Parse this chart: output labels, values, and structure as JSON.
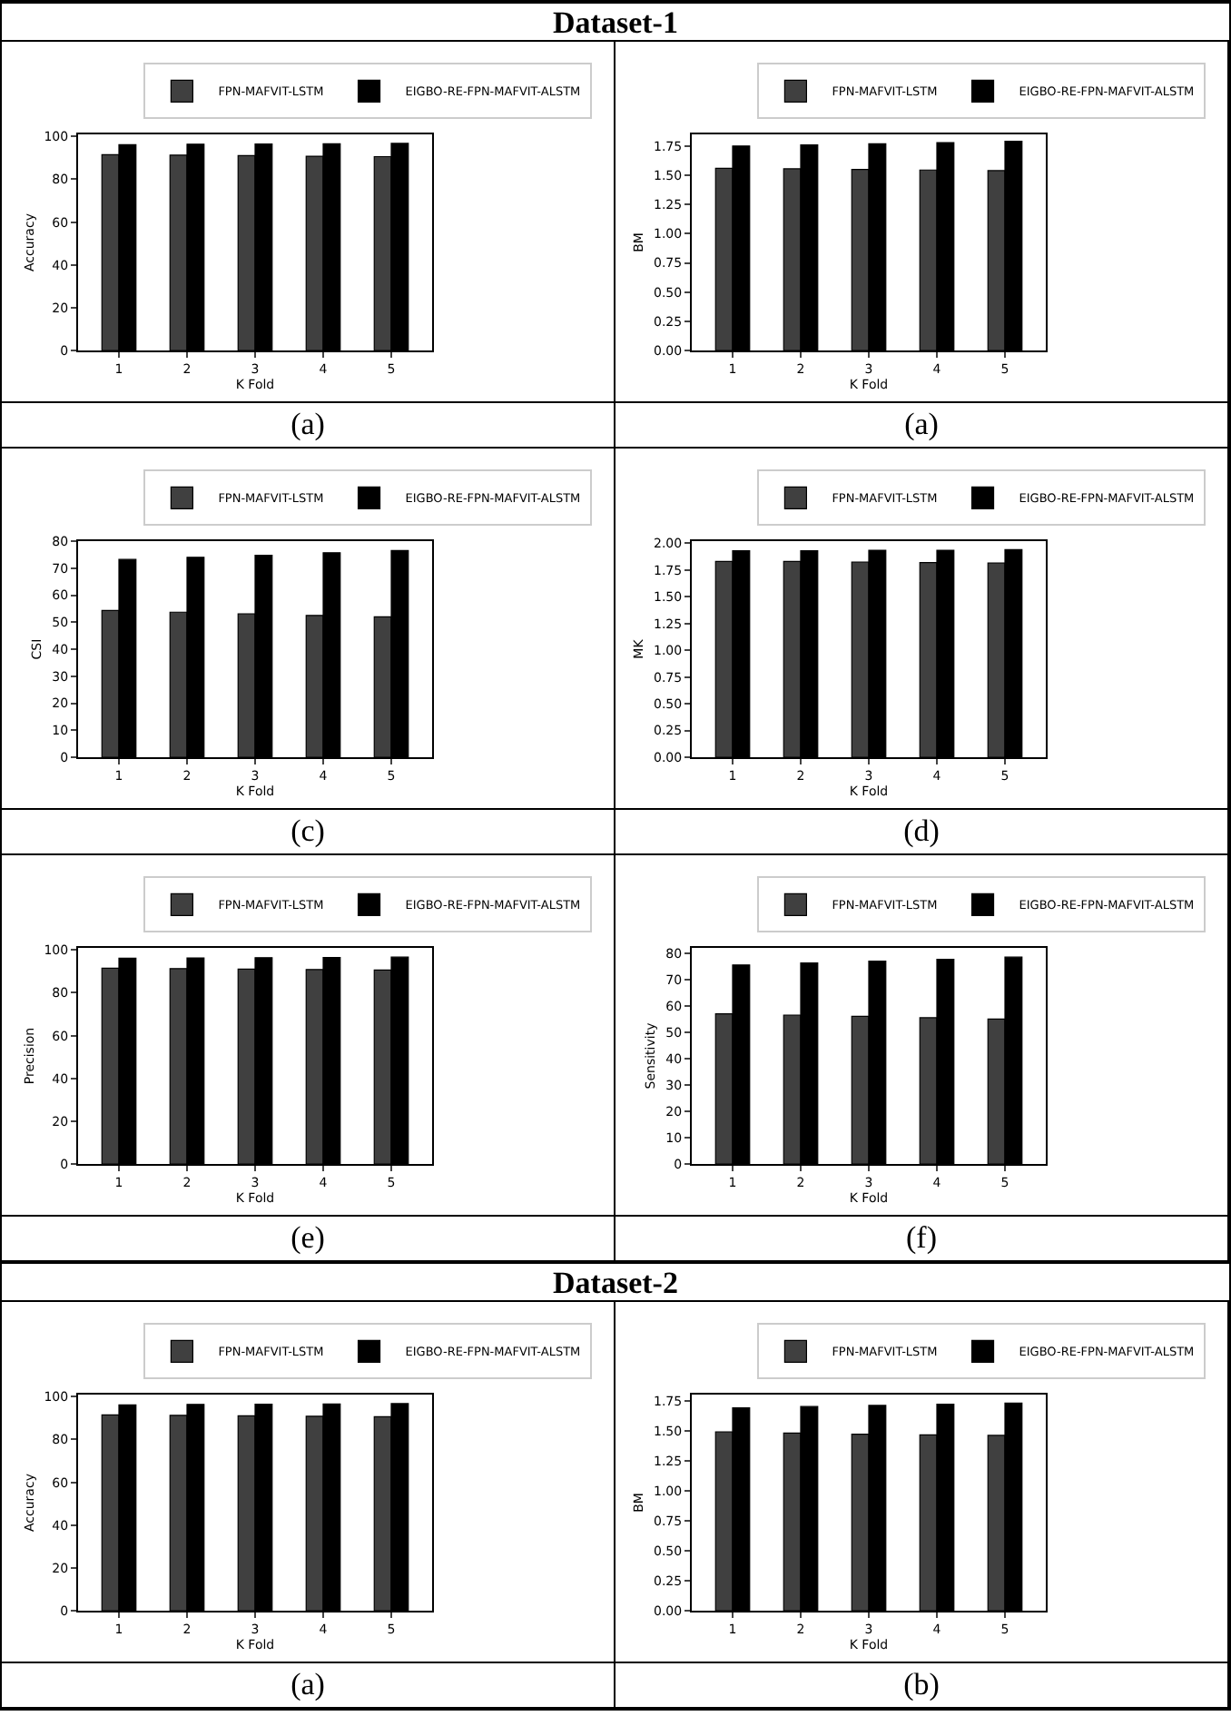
{
  "chart_data": [
    {
      "type": "other",
      "title": "Dataset-1"
    },
    {
      "type": "bar",
      "xlabel": "K Fold",
      "ylabel": "Accuracy",
      "categories": [
        "1",
        "2",
        "3",
        "4",
        "5"
      ],
      "series": [
        {
          "name": "FPN-MAFVIT-LSTM",
          "color": "#404040",
          "values": [
            91.5,
            91.3,
            91.1,
            90.8,
            90.6
          ]
        },
        {
          "name": "EIGBO-RE-FPN-MAFVIT-ALSTM",
          "color": "#000000",
          "values": [
            96.2,
            96.4,
            96.5,
            96.6,
            96.8
          ]
        }
      ],
      "ylim": [
        0,
        101
      ],
      "yticks": [
        0,
        20,
        40,
        60,
        80,
        100
      ],
      "grid": false,
      "legend": "top right",
      "annotations": [
        "(a)"
      ]
    },
    {
      "type": "bar",
      "xlabel": "K Fold",
      "ylabel": "BM",
      "categories": [
        "1",
        "2",
        "3",
        "4",
        "5"
      ],
      "series": [
        {
          "name": "FPN-MAFVIT-LSTM",
          "color": "#404040",
          "values": [
            1.56,
            1.555,
            1.55,
            1.545,
            1.54
          ]
        },
        {
          "name": "EIGBO-RE-FPN-MAFVIT-ALSTM",
          "color": "#000000",
          "values": [
            1.75,
            1.76,
            1.77,
            1.78,
            1.79
          ]
        }
      ],
      "ylim": [
        0,
        1.85
      ],
      "yticks": [
        {
          "value": 0,
          "label": "0.00"
        },
        {
          "value": 0.25,
          "label": "0.25"
        },
        {
          "value": 0.5,
          "label": "0.50"
        },
        {
          "value": 0.75,
          "label": "0.75"
        },
        {
          "value": 1,
          "label": "1.00"
        },
        {
          "value": 1.25,
          "label": "1.25"
        },
        {
          "value": 1.5,
          "label": "1.50"
        },
        {
          "value": 1.75,
          "label": "1.75"
        }
      ],
      "grid": false,
      "legend": "top right",
      "annotations": [
        "(a)"
      ]
    },
    {
      "type": "bar",
      "xlabel": "K Fold",
      "ylabel": "CSI",
      "categories": [
        "1",
        "2",
        "3",
        "4",
        "5"
      ],
      "series": [
        {
          "name": "FPN-MAFVIT-LSTM",
          "color": "#404040",
          "values": [
            54.3,
            53.7,
            53.1,
            52.5,
            52.0
          ]
        },
        {
          "name": "EIGBO-RE-FPN-MAFVIT-ALSTM",
          "color": "#000000",
          "values": [
            73.2,
            74.0,
            74.8,
            75.7,
            76.5
          ]
        }
      ],
      "ylim": [
        0,
        80
      ],
      "yticks": [
        0,
        10,
        20,
        30,
        40,
        50,
        60,
        70,
        80
      ],
      "grid": false,
      "legend": "top right",
      "annotations": [
        "(c)"
      ]
    },
    {
      "type": "bar",
      "xlabel": "K Fold",
      "ylabel": "MK",
      "categories": [
        "1",
        "2",
        "3",
        "4",
        "5"
      ],
      "series": [
        {
          "name": "FPN-MAFVIT-LSTM",
          "color": "#404040",
          "values": [
            1.83,
            1.83,
            1.825,
            1.82,
            1.815
          ]
        },
        {
          "name": "EIGBO-RE-FPN-MAFVIT-ALSTM",
          "color": "#000000",
          "values": [
            1.93,
            1.93,
            1.935,
            1.935,
            1.94
          ]
        }
      ],
      "ylim": [
        0,
        2.02
      ],
      "yticks": [
        {
          "value": 0,
          "label": "0.00"
        },
        {
          "value": 0.25,
          "label": "0.25"
        },
        {
          "value": 0.5,
          "label": "0.50"
        },
        {
          "value": 0.75,
          "label": "0.75"
        },
        {
          "value": 1,
          "label": "1.00"
        },
        {
          "value": 1.25,
          "label": "1.25"
        },
        {
          "value": 1.5,
          "label": "1.50"
        },
        {
          "value": 1.75,
          "label": "1.75"
        },
        {
          "value": 2,
          "label": "2.00"
        }
      ],
      "grid": false,
      "legend": "top right",
      "annotations": [
        "(d)"
      ]
    },
    {
      "type": "bar",
      "xlabel": "K Fold",
      "ylabel": "Precision",
      "categories": [
        "1",
        "2",
        "3",
        "4",
        "5"
      ],
      "series": [
        {
          "name": "FPN-MAFVIT-LSTM",
          "color": "#404040",
          "values": [
            91.5,
            91.3,
            91.1,
            90.9,
            90.7
          ]
        },
        {
          "name": "EIGBO-RE-FPN-MAFVIT-ALSTM",
          "color": "#000000",
          "values": [
            96.2,
            96.3,
            96.4,
            96.5,
            96.7
          ]
        }
      ],
      "ylim": [
        0,
        101
      ],
      "yticks": [
        0,
        20,
        40,
        60,
        80,
        100
      ],
      "grid": false,
      "legend": "top right",
      "annotations": [
        "(e)"
      ]
    },
    {
      "type": "bar",
      "xlabel": "K Fold",
      "ylabel": "Sensitivity",
      "categories": [
        "1",
        "2",
        "3",
        "4",
        "5"
      ],
      "series": [
        {
          "name": "FPN-MAFVIT-LSTM",
          "color": "#404040",
          "values": [
            57.0,
            56.5,
            56.0,
            55.5,
            55.0
          ]
        },
        {
          "name": "EIGBO-RE-FPN-MAFVIT-ALSTM",
          "color": "#000000",
          "values": [
            75.5,
            76.3,
            77.0,
            77.7,
            78.5
          ]
        }
      ],
      "ylim": [
        0,
        82
      ],
      "yticks": [
        0,
        10,
        20,
        30,
        40,
        50,
        60,
        70,
        80
      ],
      "grid": false,
      "legend": "top right",
      "annotations": [
        "(f)"
      ]
    },
    {
      "type": "other",
      "title": "Dataset-2"
    },
    {
      "type": "bar",
      "xlabel": "K Fold",
      "ylabel": "Accuracy",
      "categories": [
        "1",
        "2",
        "3",
        "4",
        "5"
      ],
      "series": [
        {
          "name": "FPN-MAFVIT-LSTM",
          "color": "#404040",
          "values": [
            91.5,
            91.3,
            91.1,
            90.9,
            90.7
          ]
        },
        {
          "name": "EIGBO-RE-FPN-MAFVIT-ALSTM",
          "color": "#000000",
          "values": [
            96.2,
            96.4,
            96.5,
            96.6,
            96.8
          ]
        }
      ],
      "ylim": [
        0,
        101
      ],
      "yticks": [
        0,
        20,
        40,
        60,
        80,
        100
      ],
      "grid": false,
      "legend": "top right",
      "annotations": [
        "(a)"
      ]
    },
    {
      "type": "bar",
      "xlabel": "K Fold",
      "ylabel": "BM",
      "categories": [
        "1",
        "2",
        "3",
        "4",
        "5"
      ],
      "series": [
        {
          "name": "FPN-MAFVIT-LSTM",
          "color": "#404040",
          "values": [
            1.49,
            1.48,
            1.47,
            1.465,
            1.46
          ]
        },
        {
          "name": "EIGBO-RE-FPN-MAFVIT-ALSTM",
          "color": "#000000",
          "values": [
            1.69,
            1.7,
            1.71,
            1.72,
            1.73
          ]
        }
      ],
      "ylim": [
        0,
        1.8
      ],
      "yticks": [
        {
          "value": 0,
          "label": "0.00"
        },
        {
          "value": 0.25,
          "label": "0.25"
        },
        {
          "value": 0.5,
          "label": "0.50"
        },
        {
          "value": 0.75,
          "label": "0.75"
        },
        {
          "value": 1,
          "label": "1.00"
        },
        {
          "value": 1.25,
          "label": "1.25"
        },
        {
          "value": 1.5,
          "label": "1.50"
        },
        {
          "value": 1.75,
          "label": "1.75"
        }
      ],
      "grid": false,
      "legend": "top right",
      "annotations": [
        "(b)"
      ]
    }
  ]
}
